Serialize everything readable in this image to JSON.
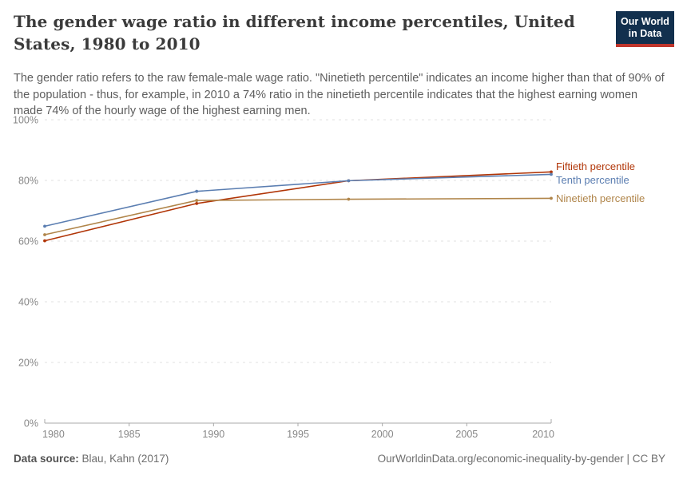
{
  "header": {
    "title": "The gender wage ratio in different income percentiles, United States, 1980 to 2010",
    "subtitle": "The gender ratio refers to the raw female-male wage ratio. \"Ninetieth percentile\" indicates an income higher than that of 90% of the population - thus, for example, in 2010 a 74% ratio in the ninetieth percentile indicates that the highest earning women made 74% of the hourly wage of the highest earning men.",
    "logo_line1": "Our World",
    "logo_line2": "in Data",
    "logo_colors": {
      "background": "#12304e",
      "underline": "#c0362c"
    }
  },
  "footer": {
    "source_label": "Data source:",
    "source_value": "Blau, Kahn (2017)",
    "credit": "OurWorldinData.org/economic-inequality-by-gender | CC BY"
  },
  "chart_data": {
    "type": "line",
    "x": [
      1980,
      1989,
      1998,
      2010
    ],
    "series": [
      {
        "name": "Fiftieth percentile",
        "color": "#b13507",
        "values": [
          60.1,
          72.4,
          79.9,
          82.8
        ]
      },
      {
        "name": "Tenth percentile",
        "color": "#5b7eb1",
        "values": [
          64.9,
          76.4,
          79.9,
          82.0
        ]
      },
      {
        "name": "Ninetieth percentile",
        "color": "#b0854a",
        "values": [
          62.1,
          73.4,
          73.8,
          74.1
        ]
      }
    ],
    "xlim": [
      1980,
      2010
    ],
    "ylim": [
      0,
      100
    ],
    "xticks": [
      1980,
      1985,
      1990,
      1995,
      2000,
      2005,
      2010
    ],
    "yticks": [
      0,
      20,
      40,
      60,
      80,
      100
    ],
    "ytick_suffix": "%",
    "grid": "horizontal-dashed",
    "legend_position": "right-of-line-ends",
    "marker": "dot",
    "colors": {
      "gridline": "#e0e0e0",
      "axis": "#a8a8a8",
      "tick_label": "#878787"
    }
  }
}
